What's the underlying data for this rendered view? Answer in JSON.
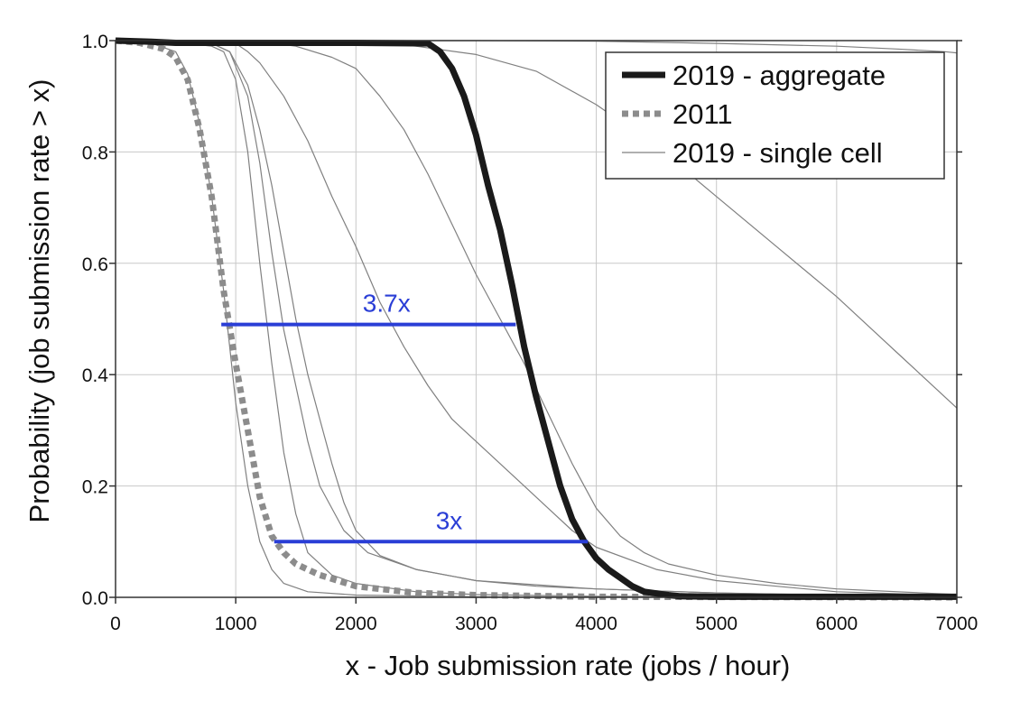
{
  "chart_data": {
    "type": "line",
    "xlabel": "x - Job submission rate (jobs / hour)",
    "ylabel": "Probability (job submission rate > x)",
    "xlim": [
      0,
      7000
    ],
    "ylim": [
      0,
      1
    ],
    "x_ticks": [
      "0",
      "1000",
      "2000",
      "3000",
      "4000",
      "5000",
      "6000",
      "7000"
    ],
    "y_ticks": [
      "0.0",
      "0.2",
      "0.4",
      "0.6",
      "0.8",
      "1.0"
    ],
    "grid": true,
    "legend_position": "top-right",
    "legend": [
      {
        "label": "2019 - aggregate",
        "style": "thick-solid",
        "color": "#1a1a1a"
      },
      {
        "label": "2011",
        "style": "dotted",
        "color": "#8c8c8c"
      },
      {
        "label": "2019 - single cell",
        "style": "thin-solid",
        "color": "#808080"
      }
    ],
    "series": [
      {
        "name": "2019 - aggregate",
        "style": "thick-solid",
        "color": "#1a1a1a",
        "points": [
          [
            0,
            1.0
          ],
          [
            300,
            0.998
          ],
          [
            500,
            0.996
          ],
          [
            1000,
            0.996
          ],
          [
            2000,
            0.996
          ],
          [
            2600,
            0.995
          ],
          [
            2700,
            0.98
          ],
          [
            2800,
            0.95
          ],
          [
            2900,
            0.9
          ],
          [
            3000,
            0.83
          ],
          [
            3100,
            0.74
          ],
          [
            3200,
            0.66
          ],
          [
            3300,
            0.56
          ],
          [
            3400,
            0.45
          ],
          [
            3500,
            0.36
          ],
          [
            3600,
            0.28
          ],
          [
            3700,
            0.2
          ],
          [
            3800,
            0.14
          ],
          [
            3900,
            0.1
          ],
          [
            4000,
            0.07
          ],
          [
            4100,
            0.05
          ],
          [
            4200,
            0.035
          ],
          [
            4300,
            0.02
          ],
          [
            4400,
            0.01
          ],
          [
            4600,
            0.004
          ],
          [
            4700,
            0.002
          ],
          [
            5000,
            0.001
          ],
          [
            7000,
            0.001
          ]
        ]
      },
      {
        "name": "2011",
        "style": "dotted",
        "color": "#8c8c8c",
        "points": [
          [
            0,
            1.0
          ],
          [
            200,
            0.996
          ],
          [
            400,
            0.985
          ],
          [
            500,
            0.97
          ],
          [
            600,
            0.93
          ],
          [
            700,
            0.84
          ],
          [
            800,
            0.72
          ],
          [
            900,
            0.55
          ],
          [
            1000,
            0.42
          ],
          [
            1100,
            0.3
          ],
          [
            1200,
            0.18
          ],
          [
            1300,
            0.11
          ],
          [
            1400,
            0.08
          ],
          [
            1500,
            0.06
          ],
          [
            1700,
            0.04
          ],
          [
            2000,
            0.02
          ],
          [
            2500,
            0.008
          ],
          [
            3000,
            0.004
          ],
          [
            4000,
            0.001
          ],
          [
            7000,
            0.0
          ]
        ]
      },
      {
        "style": "thin-solid",
        "color": "#808080",
        "points": [
          [
            0,
            1.0
          ],
          [
            300,
            0.995
          ],
          [
            500,
            0.98
          ],
          [
            600,
            0.94
          ],
          [
            700,
            0.85
          ],
          [
            800,
            0.72
          ],
          [
            900,
            0.55
          ],
          [
            1000,
            0.35
          ],
          [
            1100,
            0.2
          ],
          [
            1200,
            0.1
          ],
          [
            1300,
            0.05
          ],
          [
            1400,
            0.025
          ],
          [
            1600,
            0.01
          ],
          [
            2000,
            0.004
          ],
          [
            3000,
            0.001
          ],
          [
            7000,
            0.0
          ]
        ]
      },
      {
        "style": "thin-solid",
        "color": "#808080",
        "points": [
          [
            0,
            1.0
          ],
          [
            600,
            0.995
          ],
          [
            800,
            0.99
          ],
          [
            900,
            0.98
          ],
          [
            1000,
            0.93
          ],
          [
            1100,
            0.8
          ],
          [
            1200,
            0.6
          ],
          [
            1300,
            0.42
          ],
          [
            1400,
            0.26
          ],
          [
            1500,
            0.15
          ],
          [
            1600,
            0.08
          ],
          [
            1800,
            0.04
          ],
          [
            2000,
            0.025
          ],
          [
            2500,
            0.01
          ],
          [
            3000,
            0.005
          ],
          [
            4000,
            0.002
          ],
          [
            7000,
            0.0
          ]
        ]
      },
      {
        "style": "thin-solid",
        "color": "#808080",
        "points": [
          [
            0,
            1.0
          ],
          [
            800,
            0.995
          ],
          [
            950,
            0.98
          ],
          [
            1100,
            0.9
          ],
          [
            1200,
            0.78
          ],
          [
            1300,
            0.62
          ],
          [
            1400,
            0.48
          ],
          [
            1500,
            0.38
          ],
          [
            1600,
            0.28
          ],
          [
            1700,
            0.2
          ],
          [
            1900,
            0.12
          ],
          [
            2100,
            0.08
          ],
          [
            2500,
            0.05
          ],
          [
            3000,
            0.03
          ],
          [
            3500,
            0.02
          ],
          [
            4000,
            0.015
          ],
          [
            5000,
            0.008
          ],
          [
            6000,
            0.003
          ],
          [
            7000,
            0.0
          ]
        ]
      },
      {
        "style": "thin-solid",
        "color": "#808080",
        "points": [
          [
            0,
            1.0
          ],
          [
            800,
            0.995
          ],
          [
            950,
            0.98
          ],
          [
            1100,
            0.92
          ],
          [
            1200,
            0.84
          ],
          [
            1300,
            0.74
          ],
          [
            1400,
            0.62
          ],
          [
            1500,
            0.5
          ],
          [
            1600,
            0.4
          ],
          [
            1700,
            0.32
          ],
          [
            1800,
            0.24
          ],
          [
            1900,
            0.17
          ],
          [
            2000,
            0.12
          ],
          [
            2200,
            0.075
          ],
          [
            2500,
            0.05
          ],
          [
            3000,
            0.03
          ],
          [
            4000,
            0.015
          ],
          [
            5000,
            0.008
          ],
          [
            6000,
            0.004
          ],
          [
            7000,
            0.002
          ]
        ]
      },
      {
        "style": "thin-solid",
        "color": "#808080",
        "points": [
          [
            0,
            1.0
          ],
          [
            1000,
            0.995
          ],
          [
            1100,
            0.98
          ],
          [
            1200,
            0.96
          ],
          [
            1400,
            0.9
          ],
          [
            1600,
            0.82
          ],
          [
            1800,
            0.72
          ],
          [
            2000,
            0.63
          ],
          [
            2200,
            0.53
          ],
          [
            2400,
            0.45
          ],
          [
            2600,
            0.38
          ],
          [
            2800,
            0.32
          ],
          [
            3000,
            0.28
          ],
          [
            3200,
            0.24
          ],
          [
            3400,
            0.2
          ],
          [
            3600,
            0.16
          ],
          [
            3800,
            0.12
          ],
          [
            4000,
            0.09
          ],
          [
            4500,
            0.05
          ],
          [
            5000,
            0.03
          ],
          [
            5500,
            0.02
          ],
          [
            6000,
            0.01
          ],
          [
            7000,
            0.003
          ]
        ]
      },
      {
        "style": "thin-solid",
        "color": "#808080",
        "points": [
          [
            0,
            1.0
          ],
          [
            1200,
            0.998
          ],
          [
            1500,
            0.99
          ],
          [
            1800,
            0.97
          ],
          [
            2000,
            0.95
          ],
          [
            2200,
            0.9
          ],
          [
            2400,
            0.84
          ],
          [
            2600,
            0.76
          ],
          [
            2800,
            0.67
          ],
          [
            3000,
            0.58
          ],
          [
            3200,
            0.5
          ],
          [
            3400,
            0.42
          ],
          [
            3600,
            0.33
          ],
          [
            3800,
            0.24
          ],
          [
            4000,
            0.16
          ],
          [
            4200,
            0.11
          ],
          [
            4400,
            0.08
          ],
          [
            4600,
            0.06
          ],
          [
            5000,
            0.04
          ],
          [
            5500,
            0.025
          ],
          [
            6000,
            0.015
          ],
          [
            7000,
            0.005
          ]
        ]
      },
      {
        "style": "thin-solid",
        "color": "#808080",
        "points": [
          [
            0,
            1.0
          ],
          [
            2000,
            0.998
          ],
          [
            2500,
            0.99
          ],
          [
            3000,
            0.975
          ],
          [
            3500,
            0.945
          ],
          [
            4000,
            0.885
          ],
          [
            4500,
            0.81
          ],
          [
            5000,
            0.72
          ],
          [
            5500,
            0.63
          ],
          [
            6000,
            0.54
          ],
          [
            6500,
            0.44
          ],
          [
            7000,
            0.34
          ]
        ]
      },
      {
        "style": "thin-solid",
        "color": "#808080",
        "points": [
          [
            0,
            1.0
          ],
          [
            3000,
            1.0
          ],
          [
            4000,
            0.999
          ],
          [
            5000,
            0.995
          ],
          [
            6000,
            0.99
          ],
          [
            6500,
            0.985
          ],
          [
            6900,
            0.98
          ],
          [
            7000,
            0.978
          ]
        ]
      }
    ],
    "annotations": [
      {
        "text": "3.7x",
        "x_start": 880,
        "x_end": 3330,
        "y": 0.49,
        "color": "#2a3ed6"
      },
      {
        "text": "3x",
        "x_start": 1320,
        "x_end": 3930,
        "y": 0.1,
        "color": "#2a3ed6"
      }
    ]
  }
}
